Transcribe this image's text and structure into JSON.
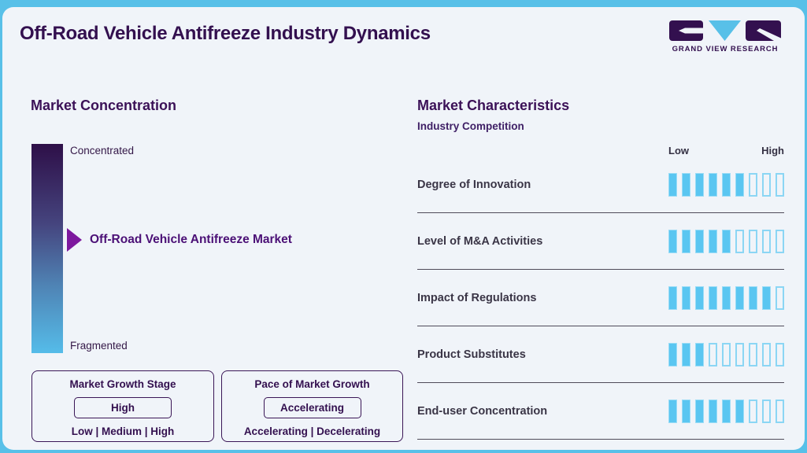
{
  "header": {
    "title": "Off-Road Vehicle Antifreeze Industry Dynamics",
    "logo_brand": "GRAND VIEW RESEARCH"
  },
  "market_concentration": {
    "title": "Market Concentration",
    "scale_top": "Concentrated",
    "scale_bottom": "Fragmented",
    "marker_label": "Off-Road Vehicle Antifreeze Market",
    "growth_stage": {
      "title": "Market Growth Stage",
      "value": "High",
      "options": "Low | Medium | High"
    },
    "growth_pace": {
      "title": "Pace of Market Growth",
      "value": "Accelerating",
      "options": "Accelerating | Decelerating"
    }
  },
  "market_characteristics": {
    "title": "Market Characteristics",
    "subtitle": "Industry Competition",
    "scale_low": "Low",
    "scale_high": "High",
    "rows": [
      {
        "label": "Degree of Innovation",
        "filled": 6,
        "total": 9
      },
      {
        "label": "Level of M&A Activities",
        "filled": 5,
        "total": 9
      },
      {
        "label": "Impact of Regulations",
        "filled": 8,
        "total": 9
      },
      {
        "label": "Product Substitutes",
        "filled": 3,
        "total": 9
      },
      {
        "label": "End-user Concentration",
        "filled": 6,
        "total": 9
      }
    ]
  },
  "chart_data": [
    {
      "type": "scale",
      "title": "Market Concentration",
      "axis_top": "Concentrated",
      "axis_bottom": "Fragmented",
      "marker": "Off-Road Vehicle Antifreeze Market",
      "marker_position_pct_from_top": 46,
      "annotations": [
        "Market Growth Stage: High (options: Low | Medium | High)",
        "Pace of Market Growth: Accelerating (options: Accelerating | Decelerating)"
      ]
    },
    {
      "type": "bar",
      "title": "Market Characteristics",
      "subtitle": "Industry Competition",
      "categories": [
        "Degree of Innovation",
        "Level of M&A Activities",
        "Impact of Regulations",
        "Product Substitutes",
        "End-user Concentration"
      ],
      "values": [
        6,
        5,
        8,
        3,
        6
      ],
      "value_max": 9,
      "xlabel": "",
      "ylabel": "",
      "scale_labels": [
        "Low",
        "High"
      ],
      "legend": "none",
      "grid": "off"
    }
  ],
  "colors": {
    "frame_blue": "#58c0e8",
    "card_bg": "#f0f4f9",
    "dark_purple": "#33104f",
    "accent_purple": "#7d189e",
    "tick_filled": "#5ac6f1",
    "tick_empty_border": "#8bd6f4",
    "gradient_top": "#2e0f48",
    "gradient_bottom": "#55bce9",
    "separator": "#4f4b59"
  }
}
